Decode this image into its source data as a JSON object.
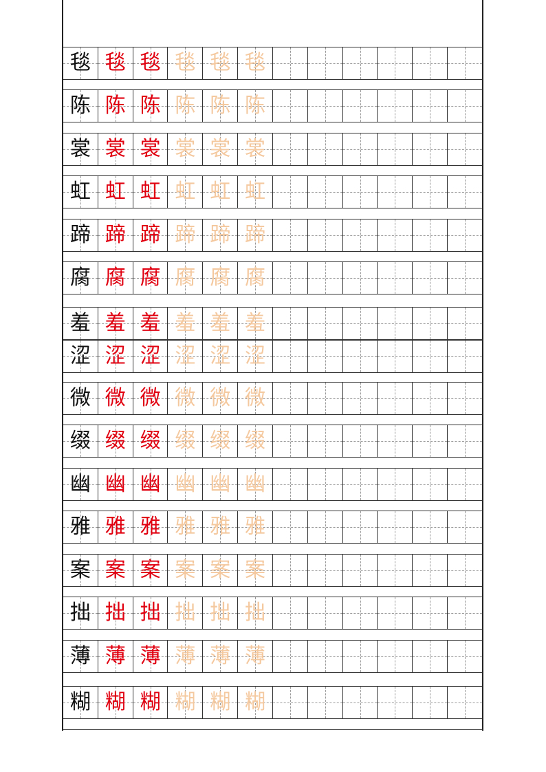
{
  "colors": {
    "model": "#111111",
    "trace_red": "#e00010",
    "trace_light": "#f5c9a0",
    "grid": "#333333"
  },
  "columns": 12,
  "rows": [
    {
      "char": "毯"
    },
    {
      "char": "陈"
    },
    {
      "char": "裳"
    },
    {
      "char": "虹"
    },
    {
      "char": "蹄"
    },
    {
      "char": "腐"
    },
    {
      "char": "羞"
    },
    {
      "char": "涩"
    },
    {
      "char": "微"
    },
    {
      "char": "缀"
    },
    {
      "char": "幽"
    },
    {
      "char": "雅"
    },
    {
      "char": "案"
    },
    {
      "char": "拙"
    },
    {
      "char": "薄"
    },
    {
      "char": "糊"
    }
  ]
}
